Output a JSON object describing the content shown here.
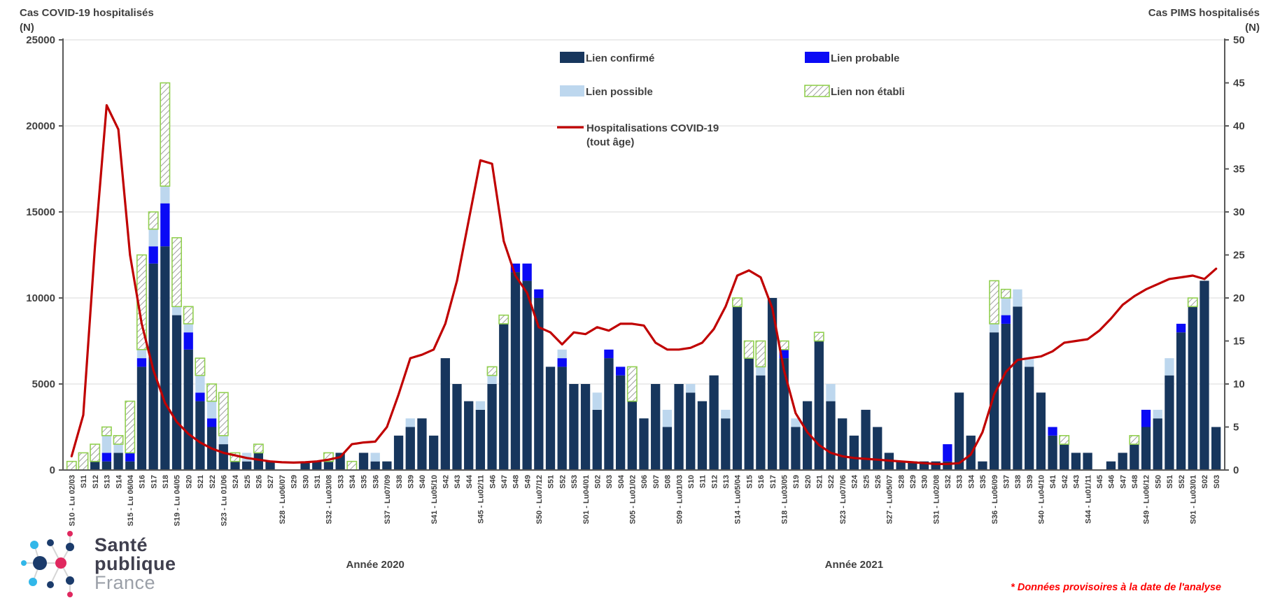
{
  "header": {
    "left_title": "Cas COVID-19 hospitalisés",
    "left_unit": "(N)",
    "right_title": "Cas PIMS hospitalisés",
    "right_unit": "(N)"
  },
  "legend": {
    "items": [
      {
        "label": "Lien confirmé",
        "type": "swatch",
        "color": "#17365d"
      },
      {
        "label": "Lien probable",
        "type": "swatch",
        "color": "#0a0af5"
      },
      {
        "label": "Lien possible",
        "type": "swatch",
        "color": "#bdd7ee"
      },
      {
        "label": "Lien non établi",
        "type": "hatch",
        "color": "#92d050"
      },
      {
        "label": "Hospitalisations COVID-19",
        "label2": "(tout âge)",
        "type": "line",
        "color": "#c00000"
      }
    ]
  },
  "footnote": "* Données provisoires à la date de l'analyse",
  "logo": {
    "line1": "Santé",
    "line2": "publique",
    "line3": "France"
  },
  "chart_data": {
    "type": "bar+line",
    "grid": true,
    "legend_position": "top-center-inside",
    "left_axis": {
      "label": "Cas COVID-19 hospitalisés (N)",
      "min": 0,
      "max": 25000,
      "step": 5000
    },
    "right_axis": {
      "label": "Cas PIMS hospitalisés (N)",
      "min": 0,
      "max": 50,
      "step": 5
    },
    "colors": {
      "axis": "#595959",
      "grid": "#d9d9d9",
      "text": "#404040",
      "hatch_stroke": "#9e9e9e"
    },
    "year_labels": [
      {
        "text": "Année 2020",
        "at_category_index": 26
      },
      {
        "text": "Année 2021",
        "at_category_index": 67
      }
    ],
    "categories": [
      "S10 - Lu 02/03",
      "S11",
      "S12",
      "S13",
      "S14",
      "S15 - Lu 06/04",
      "S16",
      "S17",
      "S18",
      "S19 - Lu 04/05",
      "S20",
      "S21",
      "S22",
      "S23 - Lu 01/06",
      "S24",
      "S25",
      "S26",
      "S27",
      "S28 - Lu06/07",
      "S29",
      "S30",
      "S31",
      "S32 - Lu03/08",
      "S33",
      "S34",
      "S35",
      "S36",
      "S37 - Lu07/09",
      "S38",
      "S39",
      "S40",
      "S41 - Lu05/10",
      "S42",
      "S43",
      "S44",
      "S45 - Lu02/11",
      "S46",
      "S47",
      "S48",
      "S49",
      "S50 - Lu07/12",
      "S51",
      "S52",
      "S53",
      "S01 - Lu04/01",
      "S02",
      "S03",
      "S04",
      "S05 - Lu01/02",
      "S06",
      "S07",
      "S08",
      "S09 - Lu01/03",
      "S10",
      "S11",
      "S12",
      "S13",
      "S14 - Lu05/04",
      "S15",
      "S16",
      "S17",
      "S18 - Lu03/05",
      "S19",
      "S20",
      "S21",
      "S22",
      "S23 - Lu07/06",
      "S24",
      "S25",
      "S26",
      "S27 - Lu05/07",
      "S28",
      "S29",
      "S30",
      "S31 - Lu02/08",
      "S32",
      "S33",
      "S34",
      "S35",
      "S36 - Lu06/09",
      "S37",
      "S38",
      "S39",
      "S40 - Lu04/10",
      "S41",
      "S42",
      "S43",
      "S44 - Lu01/11",
      "S45",
      "S46",
      "S47",
      "S48",
      "S49 - Lu06/12",
      "S50",
      "S51",
      "S52",
      "S01 - Lu03/01",
      "S02",
      "S03"
    ],
    "series": [
      {
        "name": "Lien confirmé",
        "type": "bar",
        "axis": "right",
        "color": "#17365d",
        "values": [
          0,
          0,
          1,
          1,
          2,
          1,
          12,
          24,
          26,
          18,
          14,
          8,
          5,
          3,
          1,
          1,
          2,
          1,
          0,
          0,
          1,
          1,
          1,
          2,
          0,
          2,
          1,
          1,
          4,
          5,
          6,
          4,
          13,
          10,
          8,
          7,
          10,
          17,
          23,
          22,
          20,
          12,
          12,
          10,
          10,
          7,
          13,
          11,
          8,
          6,
          10,
          5,
          10,
          9,
          8,
          11,
          6,
          19,
          13,
          11,
          20,
          13,
          5,
          8,
          15,
          8,
          6,
          4,
          7,
          5,
          2,
          1,
          1,
          1,
          1,
          1,
          9,
          4,
          1,
          16,
          17,
          19,
          12,
          9,
          4,
          3,
          2,
          2,
          0,
          1,
          2,
          3,
          5,
          6,
          11,
          16,
          19,
          22,
          5
        ]
      },
      {
        "name": "Lien probable",
        "type": "bar",
        "axis": "right",
        "color": "#0a0af5",
        "values": [
          0,
          0,
          0,
          1,
          0,
          1,
          1,
          2,
          5,
          0,
          2,
          1,
          1,
          0,
          0,
          0,
          0,
          0,
          0,
          0,
          0,
          0,
          0,
          0,
          0,
          0,
          0,
          0,
          0,
          0,
          0,
          0,
          0,
          0,
          0,
          0,
          0,
          0,
          1,
          2,
          1,
          0,
          1,
          0,
          0,
          0,
          1,
          1,
          0,
          0,
          0,
          0,
          0,
          0,
          0,
          0,
          0,
          0,
          0,
          0,
          0,
          1,
          0,
          0,
          0,
          0,
          0,
          0,
          0,
          0,
          0,
          0,
          0,
          0,
          0,
          2,
          0,
          0,
          0,
          0,
          1,
          0,
          0,
          0,
          1,
          0,
          0,
          0,
          0,
          0,
          0,
          0,
          2,
          0,
          0,
          1,
          0,
          0,
          0
        ]
      },
      {
        "name": "Lien possible",
        "type": "bar",
        "axis": "right",
        "color": "#bdd7ee",
        "values": [
          0,
          0,
          0,
          2,
          1,
          0,
          1,
          2,
          2,
          1,
          1,
          2,
          2,
          1,
          0,
          1,
          0,
          0,
          0,
          0,
          0,
          0,
          0,
          0,
          0,
          0,
          1,
          0,
          0,
          1,
          0,
          0,
          0,
          0,
          0,
          1,
          1,
          0,
          0,
          0,
          0,
          0,
          1,
          0,
          0,
          2,
          0,
          0,
          0,
          0,
          0,
          2,
          0,
          1,
          0,
          0,
          1,
          0,
          0,
          1,
          0,
          0,
          1,
          0,
          0,
          2,
          0,
          0,
          0,
          0,
          0,
          0,
          0,
          0,
          0,
          0,
          0,
          0,
          0,
          1,
          2,
          2,
          1,
          0,
          0,
          0,
          0,
          0,
          0,
          0,
          0,
          0,
          0,
          1,
          2,
          0,
          0,
          0,
          0
        ]
      },
      {
        "name": "Lien non établi",
        "type": "bar",
        "axis": "right",
        "color": "#92d050",
        "values": [
          1,
          2,
          2,
          1,
          1,
          6,
          11,
          2,
          12,
          8,
          2,
          2,
          2,
          5,
          1,
          0,
          1,
          0,
          0,
          0,
          0,
          0,
          1,
          0,
          1,
          0,
          0,
          0,
          0,
          0,
          0,
          0,
          0,
          0,
          0,
          0,
          1,
          1,
          0,
          0,
          0,
          0,
          0,
          0,
          0,
          0,
          0,
          0,
          4,
          0,
          0,
          0,
          0,
          0,
          0,
          0,
          0,
          1,
          2,
          3,
          0,
          1,
          0,
          0,
          1,
          0,
          0,
          0,
          0,
          0,
          0,
          0,
          0,
          0,
          0,
          0,
          0,
          0,
          0,
          5,
          1,
          0,
          0,
          0,
          0,
          1,
          0,
          0,
          0,
          0,
          0,
          1,
          0,
          0,
          0,
          0,
          1,
          0,
          0
        ]
      },
      {
        "name": "Hospitalisations COVID-19 (tout âge)",
        "type": "line",
        "axis": "left",
        "color": "#c00000",
        "values": [
          800,
          3200,
          13000,
          21200,
          19800,
          12500,
          8500,
          5800,
          3900,
          2800,
          2100,
          1600,
          1250,
          1000,
          850,
          700,
          600,
          500,
          450,
          430,
          450,
          500,
          600,
          750,
          1500,
          1600,
          1650,
          2500,
          4400,
          6500,
          6700,
          7000,
          8500,
          11000,
          14500,
          18000,
          17800,
          13300,
          11300,
          10300,
          8300,
          8000,
          7300,
          8000,
          7900,
          8300,
          8100,
          8500,
          8500,
          8400,
          7400,
          7000,
          7000,
          7100,
          7400,
          8200,
          9500,
          11300,
          11600,
          11200,
          9400,
          5800,
          3300,
          2200,
          1450,
          1000,
          800,
          700,
          650,
          600,
          550,
          500,
          450,
          400,
          350,
          350,
          400,
          900,
          2200,
          4400,
          5700,
          6400,
          6500,
          6600,
          6900,
          7400,
          7500,
          7600,
          8100,
          8800,
          9600,
          10100,
          10500,
          10800,
          11100,
          11200,
          11300,
          11100,
          11700
        ]
      }
    ]
  }
}
